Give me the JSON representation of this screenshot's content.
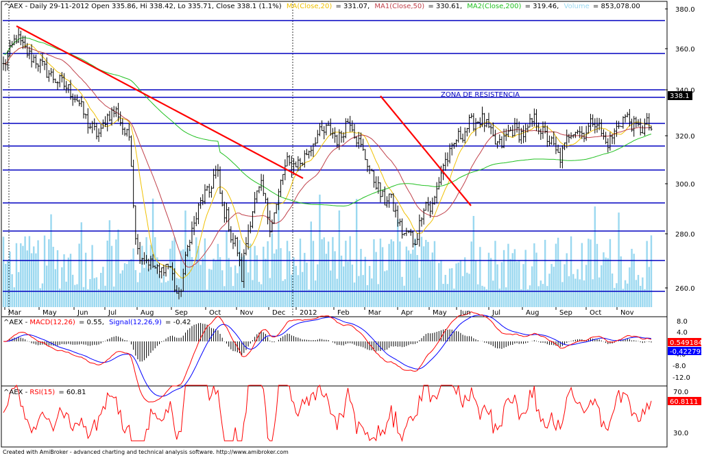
{
  "header": {
    "symbol": "^AEX",
    "title": "^AEX - Daily 29-11-2012 Open 335.86, Hi 338.42, Lo 335.71, Close 338.1 (1.1%)",
    "ma_label": "MA(Close,20)",
    "ma_value": "= 331.07,",
    "ma1_label": "MA1(Close,50)",
    "ma1_value": "= 330.61,",
    "ma2_label": "MA2(Close,200)",
    "ma2_value": "= 319.46,",
    "volume_label": "Volume",
    "volume_value": "= 853,078.00"
  },
  "annotation": "ZONA DE RESISTENCIA",
  "last_price_label": "338.1",
  "macd_header": {
    "prefix": "^AEX - ",
    "macd_label": "MACD(12,26)",
    "macd_value": "= 0.55,",
    "signal_label": "Signal(12,26,9)",
    "signal_value": "= -0.42"
  },
  "macd_badges": {
    "macd": "0.549184",
    "signal": "-0.422792"
  },
  "rsi_header": {
    "prefix": "^AEX - ",
    "label": "RSI(15)",
    "value": "= 60.81"
  },
  "rsi_badge": "60.8111",
  "footer": "Created with AmiBroker - advanced charting and technical analysis software. http://www.amibroker.com",
  "colors": {
    "price": "#000000",
    "ma20": "#f0c000",
    "ma50": "#c0404a",
    "ma200": "#20c020",
    "volume": "#9ad8f0",
    "levels": "#0000c0",
    "trendline": "#ff0000",
    "macd": "#ff0000",
    "signal": "#0000ff",
    "rsi": "#ff0000",
    "badge": "#ff0000"
  },
  "chart_data": [
    {
      "type": "line",
      "name": "price",
      "x_ticks": [
        "Mar",
        "May",
        "Jun",
        "Jul",
        "Aug",
        "Sep",
        "Oct",
        "Nov",
        "Dec",
        "2012",
        "Feb",
        "Mar",
        "Apr",
        "May",
        "Jun",
        "Jul",
        "Aug",
        "Sep",
        "Oct",
        "Nov"
      ],
      "y_ticks": [
        260.0,
        280.0,
        300.0,
        320.0,
        340.0,
        360.0,
        380.0
      ],
      "ylim": [
        255,
        384
      ],
      "price_path": [
        [
          0,
          358
        ],
        [
          5,
          362
        ],
        [
          12,
          370
        ],
        [
          18,
          366
        ],
        [
          25,
          362
        ],
        [
          32,
          360
        ],
        [
          40,
          356
        ],
        [
          50,
          352
        ],
        [
          55,
          351
        ],
        [
          62,
          348
        ],
        [
          70,
          344
        ],
        [
          75,
          339
        ],
        [
          80,
          334
        ],
        [
          84,
          332
        ],
        [
          88,
          330
        ],
        [
          92,
          330
        ],
        [
          96,
          336
        ],
        [
          100,
          338
        ],
        [
          104,
          339
        ],
        [
          108,
          339
        ],
        [
          112,
          333
        ],
        [
          116,
          329
        ],
        [
          119,
          329
        ],
        [
          121,
          318
        ],
        [
          123,
          300
        ],
        [
          126,
          282
        ],
        [
          130,
          280
        ],
        [
          136,
          278
        ],
        [
          142,
          275
        ],
        [
          148,
          272
        ],
        [
          152,
          276
        ],
        [
          158,
          275
        ],
        [
          162,
          266
        ],
        [
          166,
          262
        ],
        [
          171,
          275
        ],
        [
          176,
          288
        ],
        [
          180,
          292
        ],
        [
          185,
          300
        ],
        [
          190,
          305
        ],
        [
          194,
          305
        ],
        [
          198,
          312
        ],
        [
          202,
          315
        ],
        [
          206,
          300
        ],
        [
          212,
          295
        ],
        [
          216,
          285
        ],
        [
          220,
          285
        ],
        [
          225,
          270
        ],
        [
          228,
          282
        ],
        [
          232,
          292
        ],
        [
          236,
          300
        ],
        [
          240,
          305
        ],
        [
          244,
          308
        ],
        [
          248,
          300
        ],
        [
          252,
          292
        ],
        [
          255,
          296
        ],
        [
          258,
          300
        ],
        [
          260,
          305
        ],
        [
          263,
          312
        ],
        [
          268,
          318
        ],
        [
          272,
          316
        ],
        [
          276,
          318
        ],
        [
          282,
          318
        ],
        [
          286,
          322
        ],
        [
          290,
          324
        ],
        [
          294,
          328
        ],
        [
          298,
          330
        ],
        [
          302,
          330
        ],
        [
          306,
          332
        ],
        [
          312,
          330
        ],
        [
          316,
          327
        ],
        [
          320,
          330
        ],
        [
          324,
          335
        ],
        [
          328,
          336
        ],
        [
          332,
          330
        ],
        [
          336,
          326
        ],
        [
          340,
          322
        ],
        [
          344,
          318
        ],
        [
          348,
          312
        ],
        [
          352,
          310
        ],
        [
          356,
          305
        ],
        [
          360,
          302
        ],
        [
          364,
          305
        ],
        [
          368,
          300
        ],
        [
          372,
          295
        ],
        [
          376,
          290
        ],
        [
          380,
          288
        ],
        [
          384,
          290
        ],
        [
          387,
          283
        ],
        [
          392,
          290
        ],
        [
          396,
          300
        ],
        [
          400,
          302
        ],
        [
          404,
          298
        ],
        [
          408,
          304
        ],
        [
          412,
          312
        ],
        [
          416,
          318
        ],
        [
          420,
          320
        ],
        [
          424,
          323
        ],
        [
          428,
          328
        ],
        [
          434,
          330
        ],
        [
          440,
          334
        ],
        [
          446,
          335
        ],
        [
          452,
          336
        ],
        [
          458,
          332
        ],
        [
          464,
          326
        ],
        [
          470,
          325
        ],
        [
          476,
          330
        ],
        [
          482,
          332
        ],
        [
          488,
          330
        ],
        [
          494,
          330
        ],
        [
          498,
          334
        ],
        [
          502,
          336
        ],
        [
          506,
          333
        ],
        [
          510,
          330
        ],
        [
          514,
          328
        ],
        [
          518,
          326
        ],
        [
          522,
          322
        ],
        [
          526,
          320
        ],
        [
          530,
          324
        ],
        [
          534,
          330
        ],
        [
          538,
          332
        ],
        [
          542,
          332
        ],
        [
          546,
          330
        ],
        [
          550,
          331
        ],
        [
          554,
          333
        ],
        [
          557,
          336
        ],
        [
          561,
          335
        ],
        [
          565,
          330
        ],
        [
          569,
          326
        ],
        [
          573,
          327
        ],
        [
          577,
          330
        ],
        [
          581,
          334
        ],
        [
          585,
          336
        ],
        [
          588,
          337
        ],
        [
          592,
          335
        ],
        [
          596,
          333
        ],
        [
          600,
          332
        ],
        [
          604,
          332
        ],
        [
          608,
          334
        ],
        [
          612,
          332
        ]
      ]
    },
    {
      "type": "line",
      "name": "macd",
      "y_ticks": [
        -12.0,
        -8.0,
        -4.0,
        0,
        4.0,
        8.0
      ],
      "ylim": [
        -14,
        9
      ],
      "macd": 0.55,
      "signal": -0.42
    },
    {
      "type": "line",
      "name": "rsi",
      "y_ticks": [
        30.0,
        70.0
      ],
      "ylim": [
        18,
        78
      ],
      "value": 60.81
    }
  ]
}
